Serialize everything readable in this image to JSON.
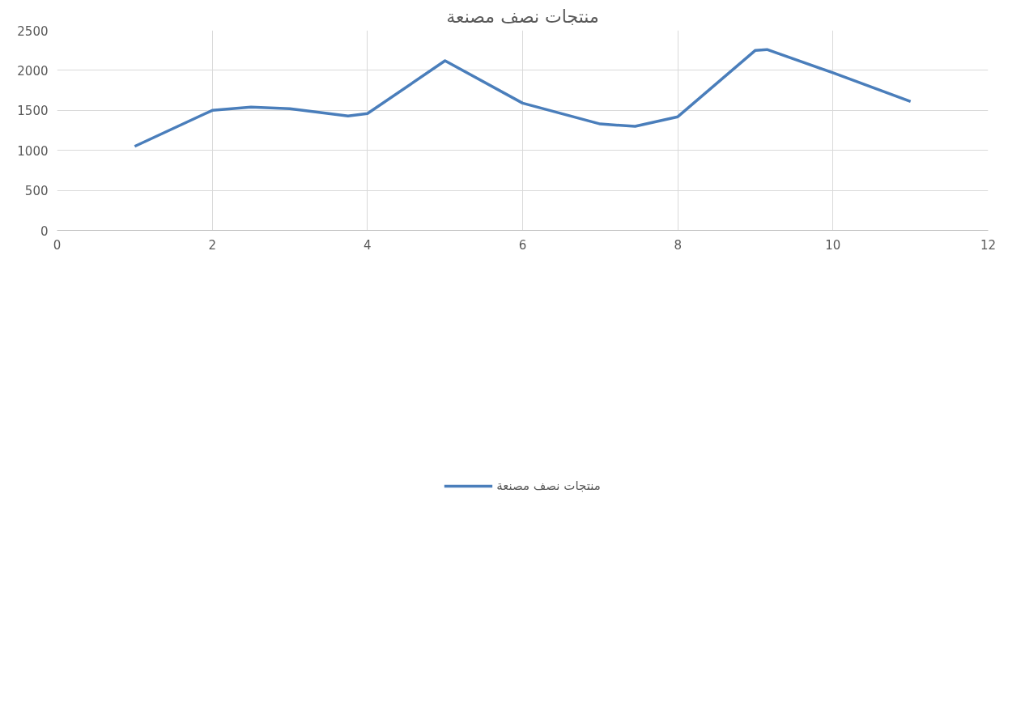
{
  "chart_data": {
    "type": "line",
    "title": "منتجات نصف مصنعة",
    "x": [
      1,
      2,
      2.5,
      3,
      3.75,
      4,
      5,
      6,
      7,
      7.45,
      8,
      9,
      9.15,
      10,
      11
    ],
    "series": [
      {
        "name": "منتجات نصف مصنعة",
        "color": "#4a7ebb",
        "values": [
          1050,
          1500,
          1540,
          1520,
          1430,
          1460,
          2120,
          1590,
          1330,
          1300,
          1420,
          2250,
          2260,
          1970,
          1610
        ]
      }
    ],
    "xlim": [
      0,
      12
    ],
    "xticks": [
      0,
      2,
      4,
      6,
      8,
      10,
      12
    ],
    "ylim": [
      0,
      2500
    ],
    "yticks": [
      0,
      500,
      1000,
      1500,
      2000,
      2500
    ],
    "grid": true,
    "legend": "bottom",
    "line_style": "solid"
  }
}
